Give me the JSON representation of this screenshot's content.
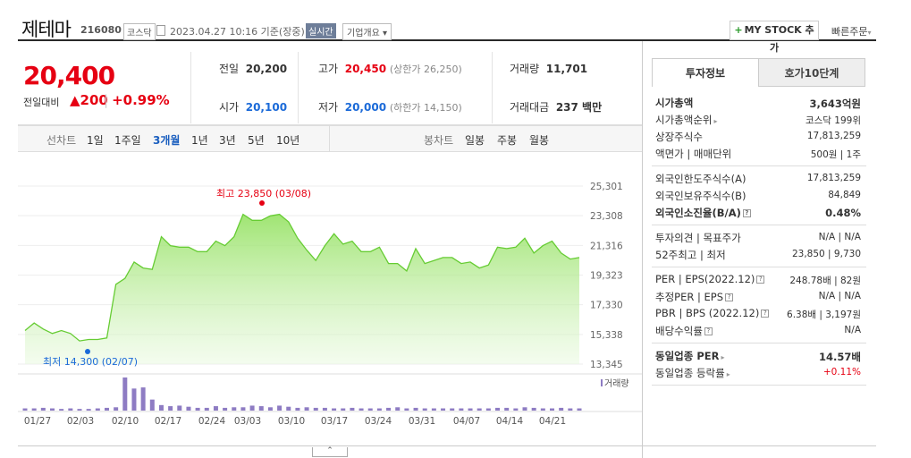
{
  "header": {
    "stock_name": "제테마",
    "stock_code": "216080",
    "market": "코스닥",
    "datetime": "2023.04.27 10:16 기준(장중)",
    "realtime": "실시간",
    "company_overview": "기업개요",
    "mystock_add": "MY STOCK 추가",
    "quick_order": "빠른주문"
  },
  "price": {
    "current": "20,400",
    "change_label": "전일대비",
    "change": "200",
    "change_pct": "+0.99%",
    "prev_close_label": "전일",
    "prev_close": "20,200",
    "open_label": "시가",
    "open": "20,100",
    "high_label": "고가",
    "high": "20,450",
    "upper_limit": "(상한가 26,250)",
    "low_label": "저가",
    "low": "20,000",
    "lower_limit": "(하한가 14,150)",
    "volume_label": "거래량",
    "volume": "11,701",
    "amount_label": "거래대금",
    "amount": "237 백만"
  },
  "period_tabs": {
    "line_label": "선차트",
    "line": [
      "1일",
      "1주일",
      "3개월",
      "1년",
      "3년",
      "5년",
      "10년"
    ],
    "active": "3개월",
    "candle_label": "봉차트",
    "candle": [
      "일봉",
      "주봉",
      "월봉"
    ]
  },
  "chart_data": {
    "type": "area",
    "ylabels": [
      "25,301",
      "23,308",
      "21,316",
      "19,323",
      "17,330",
      "15,338",
      "13,345"
    ],
    "ylim": [
      13345,
      25301
    ],
    "xlabels": [
      "01/27",
      "02/03",
      "02/10",
      "02/17",
      "02/24",
      "03/03",
      "03/10",
      "03/17",
      "03/24",
      "03/31",
      "04/07",
      "04/14",
      "04/21"
    ],
    "high_label": "최고 23,850 (03/08)",
    "low_label": "최저 14,300 (02/07)",
    "volume_label": "거래량",
    "color": "#66cc33",
    "prices": [
      15600,
      16100,
      15700,
      15400,
      15600,
      15400,
      14900,
      15000,
      15000,
      15100,
      18700,
      19100,
      20200,
      19800,
      19700,
      21900,
      21300,
      21200,
      21200,
      20900,
      20900,
      21600,
      21300,
      21900,
      23400,
      23000,
      23000,
      23300,
      23400,
      22900,
      21800,
      21000,
      20300,
      21300,
      22100,
      21400,
      21600,
      20900,
      20900,
      21200,
      20100,
      20100,
      19600,
      21100,
      20100,
      20300,
      20500,
      20500,
      20100,
      20200,
      19800,
      20000,
      21200,
      21100,
      21200,
      21800,
      20800,
      21300,
      21600,
      20800,
      20400,
      20500
    ],
    "volumes": [
      4,
      4,
      5,
      4,
      3,
      4,
      3,
      3,
      4,
      5,
      6,
      60,
      40,
      42,
      20,
      10,
      8,
      9,
      7,
      5,
      5,
      8,
      5,
      6,
      6,
      9,
      8,
      6,
      9,
      7,
      5,
      6,
      5,
      5,
      4,
      4,
      5,
      4,
      4,
      4,
      5,
      6,
      4,
      5,
      4,
      4,
      4,
      4,
      4,
      4,
      4,
      4,
      5,
      5,
      4,
      6,
      5,
      4,
      4,
      5,
      4,
      4
    ]
  },
  "side": {
    "tab_active": "투자정보",
    "tab_inactive": "호가10단계",
    "groups": [
      [
        {
          "k": "시가총액",
          "v": "3,643억원",
          "kbold": true,
          "vbold": true
        },
        {
          "k": "시가총액순위",
          "v": "코스닥 199위",
          "arrow": true
        },
        {
          "k": "상장주식수",
          "v": "17,813,259"
        },
        {
          "k": "액면가 | 매매단위",
          "v": "500원 | 1주"
        }
      ],
      [
        {
          "k": "외국인한도주식수(A)",
          "v": "17,813,259"
        },
        {
          "k": "외국인보유주식수(B)",
          "v": "84,849"
        },
        {
          "k": "외국인소진율(B/A)",
          "v": "0.48%",
          "kbold": true,
          "vbold": true,
          "help": true
        }
      ],
      [
        {
          "k": "투자의견 | 목표주가",
          "v": "N/A | N/A"
        },
        {
          "k": "52주최고 | 최저",
          "v": "23,850 | 9,730"
        }
      ],
      [
        {
          "k": "PER | EPS(2022.12)",
          "v": "248.78배 | 82원",
          "help": true
        },
        {
          "k": "추정PER | EPS",
          "v": "N/A | N/A",
          "help": true
        },
        {
          "k": "PBR | BPS (2022.12)",
          "v": "6.38배 | 3,197원",
          "help": true
        },
        {
          "k": "배당수익률",
          "v": "N/A",
          "help": true
        }
      ],
      [
        {
          "k": "동일업종 PER",
          "v": "14.57배",
          "kbold": true,
          "vbold": true,
          "arrow": true
        },
        {
          "k": "동일업종 등락률",
          "v": "+0.11%",
          "arrow": true,
          "vred": true
        }
      ]
    ]
  }
}
